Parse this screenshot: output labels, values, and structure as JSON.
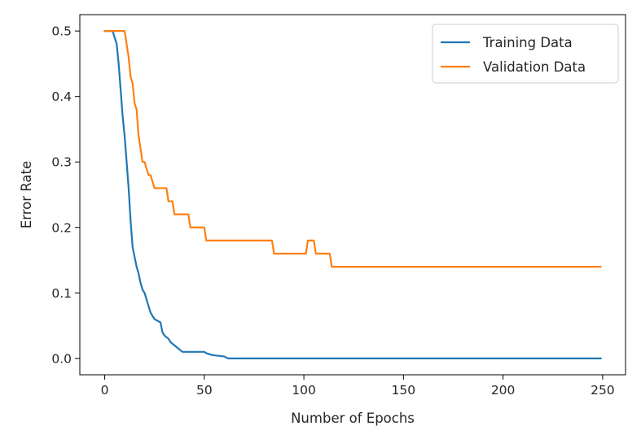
{
  "chart_data": {
    "type": "line",
    "title": "",
    "xlabel": "Number of Epochs",
    "ylabel": "Error Rate",
    "xlim": [
      -12.5,
      261.5
    ],
    "ylim": [
      -0.025,
      0.525
    ],
    "xticks": [
      0,
      50,
      100,
      150,
      200,
      250
    ],
    "xtick_labels": [
      "0",
      "50",
      "100",
      "150",
      "200",
      "250"
    ],
    "yticks": [
      0.0,
      0.1,
      0.2,
      0.3,
      0.4,
      0.5
    ],
    "ytick_labels": [
      "0.0",
      "0.1",
      "0.2",
      "0.3",
      "0.4",
      "0.5"
    ],
    "grid": false,
    "legend_position": "top-right",
    "series": [
      {
        "name": "Training Data",
        "color": "#1f77b4",
        "points": [
          [
            0,
            0.5
          ],
          [
            4,
            0.5
          ],
          [
            5,
            0.49
          ],
          [
            6,
            0.48
          ],
          [
            7,
            0.45
          ],
          [
            8,
            0.41
          ],
          [
            9,
            0.37
          ],
          [
            10,
            0.34
          ],
          [
            11,
            0.3
          ],
          [
            12,
            0.26
          ],
          [
            13,
            0.21
          ],
          [
            14,
            0.17
          ],
          [
            15,
            0.155
          ],
          [
            16,
            0.14
          ],
          [
            17,
            0.13
          ],
          [
            18,
            0.115
          ],
          [
            19,
            0.105
          ],
          [
            20,
            0.1
          ],
          [
            21,
            0.09
          ],
          [
            22,
            0.08
          ],
          [
            23,
            0.07
          ],
          [
            24,
            0.065
          ],
          [
            25,
            0.06
          ],
          [
            28,
            0.055
          ],
          [
            29,
            0.04
          ],
          [
            30,
            0.035
          ],
          [
            32,
            0.03
          ],
          [
            33,
            0.025
          ],
          [
            35,
            0.02
          ],
          [
            37,
            0.015
          ],
          [
            39,
            0.01
          ],
          [
            50,
            0.01
          ],
          [
            51,
            0.008
          ],
          [
            54,
            0.005
          ],
          [
            60,
            0.003
          ],
          [
            62,
            0.0
          ],
          [
            249,
            0.0
          ]
        ]
      },
      {
        "name": "Validation Data",
        "color": "#ff7f0e",
        "points": [
          [
            0,
            0.5
          ],
          [
            10,
            0.5
          ],
          [
            11,
            0.48
          ],
          [
            12,
            0.46
          ],
          [
            13,
            0.43
          ],
          [
            14,
            0.42
          ],
          [
            15,
            0.39
          ],
          [
            16,
            0.38
          ],
          [
            17,
            0.34
          ],
          [
            18,
            0.32
          ],
          [
            19,
            0.3
          ],
          [
            20,
            0.3
          ],
          [
            21,
            0.29
          ],
          [
            22,
            0.28
          ],
          [
            23,
            0.28
          ],
          [
            24,
            0.27
          ],
          [
            25,
            0.26
          ],
          [
            31,
            0.26
          ],
          [
            32,
            0.24
          ],
          [
            34,
            0.24
          ],
          [
            35,
            0.22
          ],
          [
            42,
            0.22
          ],
          [
            43,
            0.2
          ],
          [
            50,
            0.2
          ],
          [
            51,
            0.18
          ],
          [
            84,
            0.18
          ],
          [
            85,
            0.16
          ],
          [
            101,
            0.16
          ],
          [
            102,
            0.18
          ],
          [
            105,
            0.18
          ],
          [
            106,
            0.16
          ],
          [
            113,
            0.16
          ],
          [
            114,
            0.14
          ],
          [
            249,
            0.14
          ]
        ]
      }
    ]
  }
}
